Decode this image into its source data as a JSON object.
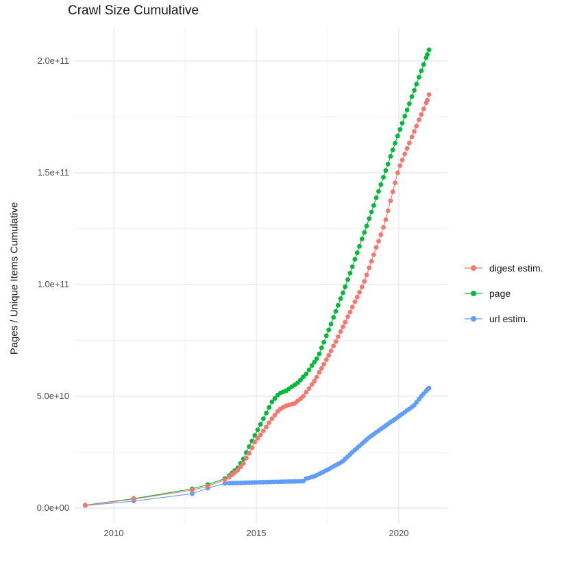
{
  "title": "Crawl Size Cumulative",
  "y_axis": {
    "label": "Pages / Unique Items Cumulative",
    "tick_labels": [
      "0.0e+00",
      "5.0e+10",
      "1.0e+11",
      "1.5e+11",
      "2.0e+11"
    ],
    "tick_values_billions": [
      0,
      50,
      100,
      150,
      200
    ],
    "minor_values_billions": [
      25,
      75,
      125,
      175
    ]
  },
  "x_axis": {
    "tick_labels": [
      "2010",
      "2015",
      "2020"
    ],
    "tick_values": [
      2010,
      2015,
      2020
    ],
    "minor_values": [
      2012.5,
      2017.5
    ]
  },
  "legend": {
    "position": "right",
    "items": [
      {
        "label": "digest estim.",
        "color": "#F8766D"
      },
      {
        "label": "page",
        "color": "#00BA38"
      },
      {
        "label": "url estim.",
        "color": "#619CFF"
      }
    ]
  },
  "colors": {
    "grid_major": "#e4e4e4",
    "grid_minor": "#f1f1f1",
    "title_text": "#181818",
    "tick_text": "#4a4a4a"
  },
  "chart_data": {
    "type": "line",
    "title": "Crawl Size Cumulative",
    "xlabel": "",
    "ylabel": "Pages / Unique Items Cumulative",
    "x_unit": "crawl date (decimal year)",
    "y_values_unit": "billions (1e9) of pages / unique items",
    "xlim": [
      2008.6,
      2021.7
    ],
    "ylim_billions": [
      0,
      215
    ],
    "grid": true,
    "legend_position": "right",
    "x": [
      2009.0,
      2010.7,
      2012.75,
      2013.3,
      2013.9,
      2014.05,
      2014.15,
      2014.25,
      2014.35,
      2014.45,
      2014.55,
      2014.65,
      2014.75,
      2014.85,
      2014.95,
      2015.05,
      2015.15,
      2015.25,
      2015.35,
      2015.45,
      2015.55,
      2015.65,
      2015.75,
      2015.85,
      2015.95,
      2016.05,
      2016.15,
      2016.25,
      2016.35,
      2016.45,
      2016.55,
      2016.65,
      2016.75,
      2016.85,
      2016.95,
      2017.04,
      2017.12,
      2017.21,
      2017.29,
      2017.37,
      2017.46,
      2017.54,
      2017.62,
      2017.71,
      2017.79,
      2017.87,
      2017.96,
      2018.04,
      2018.12,
      2018.21,
      2018.29,
      2018.37,
      2018.46,
      2018.54,
      2018.62,
      2018.71,
      2018.79,
      2018.87,
      2018.96,
      2019.04,
      2019.12,
      2019.21,
      2019.29,
      2019.37,
      2019.46,
      2019.54,
      2019.62,
      2019.71,
      2019.79,
      2019.87,
      2019.96,
      2020.04,
      2020.12,
      2020.21,
      2020.29,
      2020.37,
      2020.46,
      2020.54,
      2020.62,
      2020.71,
      2020.79,
      2020.87,
      2020.96,
      2021.0,
      2021.06
    ],
    "series": [
      {
        "name": "digest estim.",
        "color": "#F8766D",
        "zorder": 3,
        "values_billions": [
          1.2,
          4.0,
          8.0,
          9.8,
          12.6,
          13.8,
          14.9,
          15.9,
          17.0,
          18.5,
          20.0,
          22.3,
          24.5,
          27.0,
          29.5,
          31.2,
          32.8,
          34.5,
          36.3,
          38.2,
          40.0,
          41.6,
          43.2,
          44.4,
          45.1,
          45.8,
          46.1,
          46.5,
          46.8,
          47.9,
          48.9,
          50.0,
          51.8,
          53.5,
          55.3,
          56.8,
          58.6,
          60.7,
          62.5,
          64.4,
          66.4,
          68.3,
          70.3,
          72.5,
          74.5,
          76.7,
          79.0,
          81.1,
          83.2,
          85.6,
          87.7,
          89.9,
          92.3,
          94.4,
          96.5,
          98.9,
          101.4,
          104.3,
          107.5,
          110.4,
          113.3,
          116.6,
          119.4,
          122.3,
          125.6,
          129.0,
          133.0,
          137.5,
          141.5,
          145.5,
          150.0,
          153.2,
          155.7,
          158.4,
          160.9,
          163.3,
          166.0,
          168.5,
          170.9,
          173.7,
          176.1,
          178.6,
          181.3,
          182.5,
          185.0
        ]
      },
      {
        "name": "page",
        "color": "#00BA38",
        "zorder": 2,
        "values_billions": [
          1.3,
          4.2,
          8.6,
          10.5,
          13.2,
          14.5,
          15.7,
          16.8,
          18.0,
          20.0,
          22.0,
          24.8,
          27.5,
          30.0,
          32.5,
          35.0,
          37.5,
          40.0,
          42.5,
          45.0,
          47.5,
          49.0,
          50.5,
          51.5,
          52.0,
          52.5,
          53.4,
          54.3,
          55.1,
          56.0,
          57.3,
          58.7,
          60.0,
          61.8,
          63.7,
          65.3,
          66.8,
          69.0,
          71.7,
          74.2,
          77.1,
          79.7,
          82.3,
          85.3,
          88.0,
          90.7,
          93.7,
          96.3,
          99.0,
          102.2,
          105.1,
          108.0,
          111.3,
          114.2,
          117.1,
          120.4,
          123.3,
          126.2,
          129.5,
          132.5,
          135.4,
          138.8,
          141.7,
          144.7,
          148.0,
          151.0,
          153.9,
          157.3,
          160.2,
          163.2,
          166.5,
          169.4,
          172.2,
          175.3,
          178.1,
          180.9,
          184.1,
          186.9,
          189.7,
          192.8,
          195.6,
          198.4,
          201.5,
          202.9,
          205.0
        ]
      },
      {
        "name": "url estim.",
        "color": "#619CFF",
        "zorder": 1,
        "values_billions": [
          1.1,
          3.1,
          6.4,
          8.9,
          11.0,
          11.1,
          11.14,
          11.18,
          11.22,
          11.26,
          11.3,
          11.34,
          11.38,
          11.42,
          11.46,
          11.5,
          11.53,
          11.56,
          11.59,
          11.62,
          11.65,
          11.68,
          11.71,
          11.74,
          11.77,
          11.8,
          11.83,
          11.87,
          11.9,
          11.93,
          11.97,
          12.0,
          13.2,
          13.5,
          13.9,
          14.2,
          14.7,
          15.3,
          15.8,
          16.3,
          16.9,
          17.4,
          18.0,
          18.6,
          19.2,
          19.7,
          20.4,
          21.0,
          22.0,
          23.0,
          24.0,
          25.0,
          26.0,
          26.9,
          27.8,
          28.8,
          29.7,
          30.6,
          31.6,
          32.3,
          33.0,
          33.9,
          34.6,
          35.3,
          36.1,
          36.9,
          37.6,
          38.4,
          39.1,
          39.8,
          40.6,
          41.4,
          42.1,
          42.9,
          43.7,
          44.4,
          45.2,
          46.0,
          47.3,
          48.7,
          50.0,
          51.2,
          52.4,
          53.0,
          53.7
        ]
      }
    ]
  }
}
